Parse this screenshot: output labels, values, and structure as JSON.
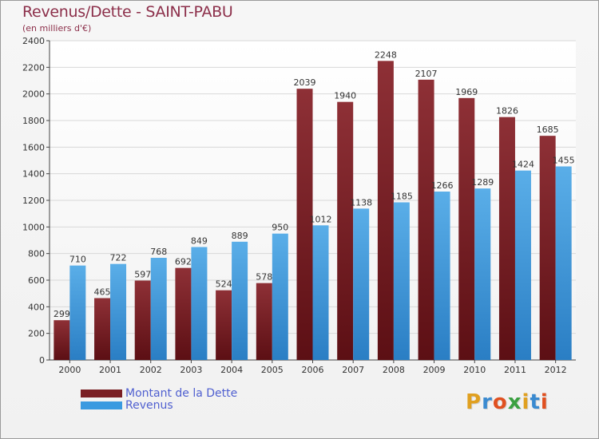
{
  "chart_data": {
    "type": "bar",
    "title": "Revenus/Dette - SAINT-PABU",
    "subtitle": "(en milliers d'€)",
    "categories": [
      "2000",
      "2001",
      "2002",
      "2003",
      "2004",
      "2005",
      "2006",
      "2007",
      "2008",
      "2009",
      "2010",
      "2011",
      "2012"
    ],
    "series": [
      {
        "name": "Montant de la Dette",
        "color": "#7a1f24",
        "values": [
          299,
          465,
          597,
          692,
          524,
          578,
          2039,
          1940,
          2248,
          2107,
          1969,
          1826,
          1685
        ]
      },
      {
        "name": "Revenus",
        "color": "#3a9ae0",
        "values": [
          710,
          722,
          768,
          849,
          889,
          950,
          1012,
          1138,
          1185,
          1266,
          1289,
          1424,
          1455
        ]
      }
    ],
    "ylim": [
      0,
      2400
    ],
    "yticks": [
      0,
      200,
      400,
      600,
      800,
      1000,
      1200,
      1400,
      1600,
      1800,
      2000,
      2200,
      2400
    ],
    "grid": true,
    "legend": "bottom-left"
  },
  "logo": {
    "letters": [
      "P",
      "r",
      "o",
      "x",
      "i",
      "t",
      "i"
    ],
    "colors": [
      "#e0a020",
      "#3a8ad0",
      "#e05020",
      "#3aa040",
      "#e0a020",
      "#3a8ad0",
      "#e05020"
    ]
  }
}
